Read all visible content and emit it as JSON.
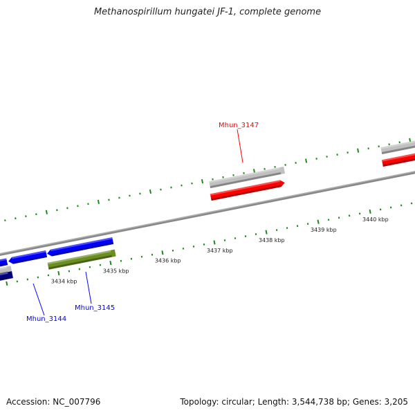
{
  "title": "Methanospirillum hungatei JF-1, complete genome",
  "accession": "Accession: NC_007796",
  "summary": "Topology: circular; Length: 3,544,738 bp; Genes: 3,205",
  "scale_labels": [
    "3434 kbp",
    "3435 kbp",
    "3436 kbp",
    "3437 kbp",
    "3438 kbp",
    "3439 kbp",
    "3440 kbp"
  ],
  "gene_labels": [
    {
      "name": "Mhun_3147",
      "color": "#ff0000"
    },
    {
      "name": "Mhun_3144",
      "color": "#0000ff"
    },
    {
      "name": "Mhun_3145",
      "color": "#0000ff"
    }
  ],
  "colors": {
    "backbone": "#888888",
    "tick": "#1a8a1a",
    "forward": "#ff0000",
    "reverse": "#0000ff",
    "rna": "#6b8e23",
    "gray": "#c0c0c0"
  }
}
